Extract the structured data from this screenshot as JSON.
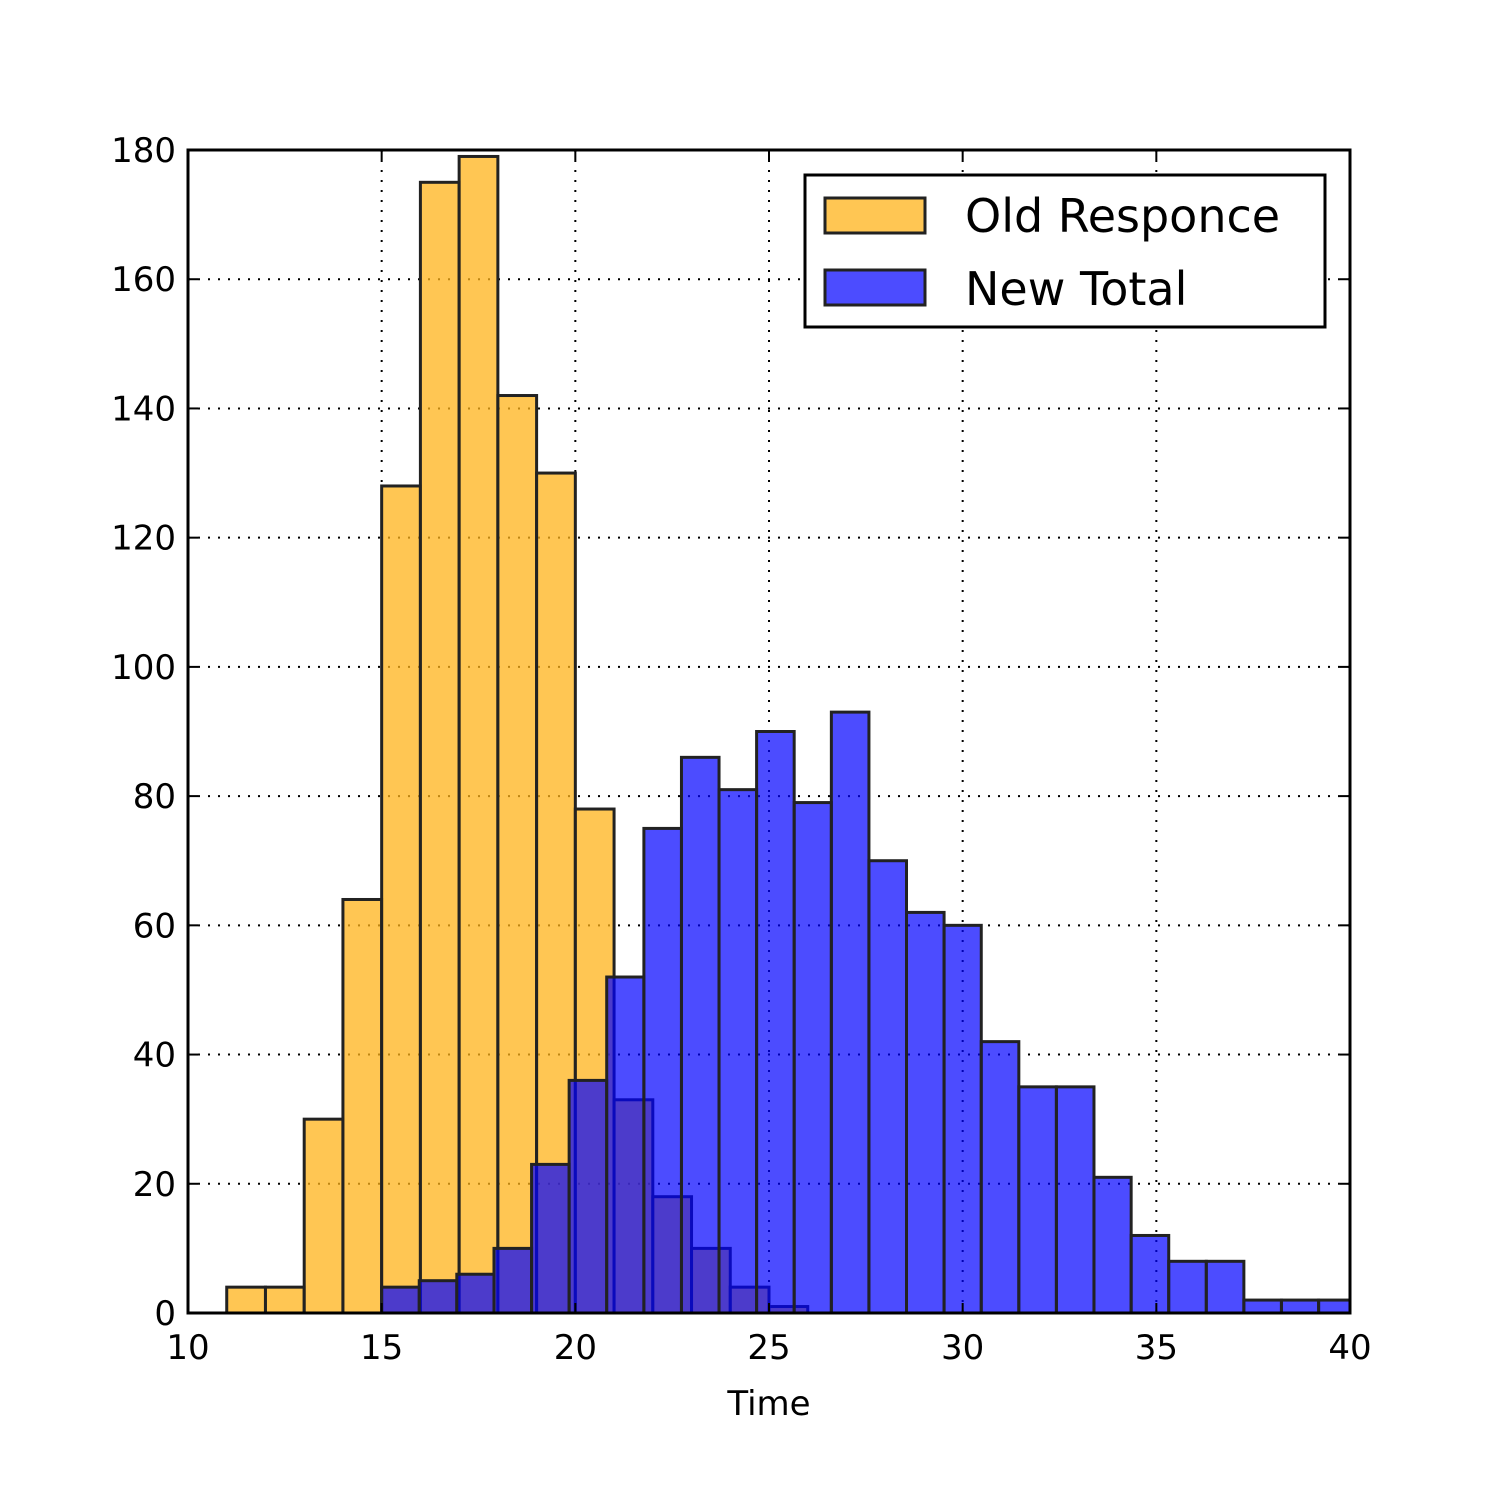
{
  "chart_data": {
    "type": "bar",
    "xlabel": "Time",
    "ylabel": "",
    "title": "",
    "xlim": [
      10,
      40
    ],
    "ylim": [
      0,
      180
    ],
    "xticks": [
      10,
      15,
      20,
      25,
      30,
      35,
      40
    ],
    "yticks": [
      0,
      20,
      40,
      60,
      80,
      100,
      120,
      140,
      160,
      180
    ],
    "grid": true,
    "legend_position": "top-right",
    "series": [
      {
        "name": "Old Responce",
        "color": "#ffb31a",
        "opacity": 0.75,
        "bins": [
          {
            "x0": 11.0,
            "x1": 12.0,
            "count": 4
          },
          {
            "x0": 12.0,
            "x1": 13.0,
            "count": 4
          },
          {
            "x0": 13.0,
            "x1": 14.0,
            "count": 30
          },
          {
            "x0": 14.0,
            "x1": 15.0,
            "count": 64
          },
          {
            "x0": 15.0,
            "x1": 16.0,
            "count": 128
          },
          {
            "x0": 16.0,
            "x1": 17.0,
            "count": 175
          },
          {
            "x0": 17.0,
            "x1": 18.0,
            "count": 179
          },
          {
            "x0": 18.0,
            "x1": 19.0,
            "count": 142
          },
          {
            "x0": 19.0,
            "x1": 20.0,
            "count": 130
          },
          {
            "x0": 20.0,
            "x1": 21.0,
            "count": 78
          },
          {
            "x0": 21.0,
            "x1": 22.0,
            "count": 33
          },
          {
            "x0": 22.0,
            "x1": 23.0,
            "count": 18
          },
          {
            "x0": 23.0,
            "x1": 24.0,
            "count": 10
          },
          {
            "x0": 24.0,
            "x1": 25.0,
            "count": 4
          },
          {
            "x0": 25.0,
            "x1": 26.0,
            "count": 1
          }
        ]
      },
      {
        "name": "New Total",
        "color": "#0000ff",
        "opacity": 0.7,
        "bins": [
          {
            "x0": 15.0,
            "x1": 15.97,
            "count": 4
          },
          {
            "x0": 15.97,
            "x1": 16.94,
            "count": 5
          },
          {
            "x0": 16.94,
            "x1": 17.9,
            "count": 6
          },
          {
            "x0": 17.9,
            "x1": 18.87,
            "count": 10
          },
          {
            "x0": 18.87,
            "x1": 19.84,
            "count": 23
          },
          {
            "x0": 19.84,
            "x1": 20.81,
            "count": 36
          },
          {
            "x0": 20.81,
            "x1": 21.77,
            "count": 52
          },
          {
            "x0": 21.77,
            "x1": 22.74,
            "count": 75
          },
          {
            "x0": 22.74,
            "x1": 23.71,
            "count": 86
          },
          {
            "x0": 23.71,
            "x1": 24.68,
            "count": 81
          },
          {
            "x0": 24.68,
            "x1": 25.65,
            "count": 90
          },
          {
            "x0": 25.65,
            "x1": 26.61,
            "count": 79
          },
          {
            "x0": 26.61,
            "x1": 27.58,
            "count": 93
          },
          {
            "x0": 27.58,
            "x1": 28.55,
            "count": 70
          },
          {
            "x0": 28.55,
            "x1": 29.52,
            "count": 62
          },
          {
            "x0": 29.52,
            "x1": 30.48,
            "count": 60
          },
          {
            "x0": 30.48,
            "x1": 31.45,
            "count": 42
          },
          {
            "x0": 31.45,
            "x1": 32.42,
            "count": 35
          },
          {
            "x0": 32.42,
            "x1": 33.39,
            "count": 35
          },
          {
            "x0": 33.39,
            "x1": 34.35,
            "count": 21
          },
          {
            "x0": 34.35,
            "x1": 35.32,
            "count": 12
          },
          {
            "x0": 35.32,
            "x1": 36.29,
            "count": 8
          },
          {
            "x0": 36.29,
            "x1": 37.26,
            "count": 8
          },
          {
            "x0": 37.26,
            "x1": 38.23,
            "count": 2
          },
          {
            "x0": 38.23,
            "x1": 39.19,
            "count": 2
          },
          {
            "x0": 39.19,
            "x1": 40.16,
            "count": 2
          }
        ]
      }
    ]
  }
}
